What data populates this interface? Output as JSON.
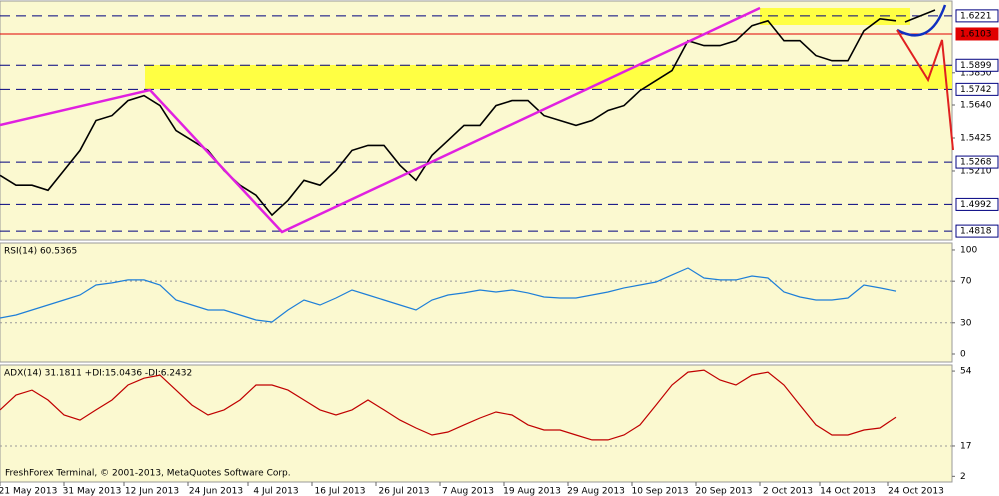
{
  "footer": "FreshForex Terminal, © 2001-2013, MetaQuotes Software Corp.",
  "chart_data": [
    {
      "type": "line",
      "color": "#000000",
      "x": [
        0,
        2,
        4,
        6,
        8,
        10,
        12,
        14,
        16,
        18,
        20,
        22,
        24,
        26,
        28,
        30,
        32,
        34,
        36,
        38,
        40,
        42,
        44,
        46,
        48,
        50,
        52,
        54,
        56,
        58,
        60,
        62,
        64,
        66,
        68,
        70,
        72,
        74,
        76,
        78,
        80,
        82,
        84,
        86,
        88,
        90,
        92,
        94,
        96,
        98,
        100,
        102,
        104,
        106,
        108,
        110,
        112
      ],
      "values": [
        1.5182,
        1.5117,
        1.5117,
        1.5084,
        1.5214,
        1.5344,
        1.5539,
        1.5571,
        1.5669,
        1.5701,
        1.5636,
        1.5474,
        1.5409,
        1.5344,
        1.5214,
        1.5117,
        1.5052,
        1.4922,
        1.5019,
        1.5149,
        1.5117,
        1.5214,
        1.5344,
        1.5377,
        1.5377,
        1.5247,
        1.5149,
        1.5312,
        1.5409,
        1.5507,
        1.5507,
        1.5636,
        1.5669,
        1.5669,
        1.5571,
        1.5539,
        1.5507,
        1.5539,
        1.5604,
        1.5636,
        1.5734,
        1.5799,
        1.5864,
        1.6059,
        1.6027,
        1.6027,
        1.6059,
        1.6157,
        1.6189,
        1.6059,
        1.6059,
        1.5962,
        1.5929,
        1.5929,
        1.6124,
        1.6202,
        1.6189
      ],
      "xlim": [
        0,
        119
      ],
      "xticks": [
        {
          "value": 3.5,
          "label": "21 May 2013"
        },
        {
          "value": 11.5,
          "label": "31 May 2013"
        },
        {
          "value": 19,
          "label": "12 Jun 2013"
        },
        {
          "value": 27,
          "label": "24 Jun 2013"
        },
        {
          "value": 34.5,
          "label": "4 Jul 2013"
        },
        {
          "value": 42.5,
          "label": "16 Jul 2013"
        },
        {
          "value": 50.5,
          "label": "26 Jul 2013"
        },
        {
          "value": 58.5,
          "label": "7 Aug 2013"
        },
        {
          "value": 66.5,
          "label": "19 Aug 2013"
        },
        {
          "value": 74.5,
          "label": "29 Aug 2013"
        },
        {
          "value": 82.5,
          "label": "10 Sep 2013"
        },
        {
          "value": 90.5,
          "label": "20 Sep 2013"
        },
        {
          "value": 98.5,
          "label": "2 Oct 2013"
        },
        {
          "value": 106,
          "label": "14 Oct 2013"
        },
        {
          "value": 114.5,
          "label": "24 Oct 2013"
        }
      ],
      "ylim": [
        1.476,
        1.6318
      ],
      "yticks": [
        {
          "value": 1.585,
          "label": "1.5850"
        },
        {
          "value": 1.564,
          "label": "1.5640"
        },
        {
          "value": 1.5425,
          "label": "1.5425"
        },
        {
          "value": 1.521,
          "label": "1.5210"
        }
      ],
      "levels": [
        {
          "value": 1.6221,
          "color": "#000080"
        },
        {
          "value": 1.6103,
          "color": "#e00000"
        },
        {
          "value": 1.5899,
          "color": "#000080"
        },
        {
          "value": 1.5742,
          "color": "#000080"
        },
        {
          "value": 1.5268,
          "color": "#000080"
        },
        {
          "value": 1.4992,
          "color": "#000080"
        },
        {
          "value": 1.4818,
          "color": "#000080"
        }
      ]
    },
    {
      "type": "line",
      "title": "RSI(14) 60.5365",
      "color": "#1e7fd8",
      "x": [
        0,
        2,
        4,
        6,
        8,
        10,
        12,
        14,
        16,
        18,
        20,
        22,
        24,
        26,
        28,
        30,
        32,
        34,
        36,
        38,
        40,
        42,
        44,
        46,
        48,
        50,
        52,
        54,
        56,
        58,
        60,
        62,
        64,
        66,
        68,
        70,
        72,
        74,
        76,
        78,
        80,
        82,
        84,
        86,
        88,
        90,
        92,
        94,
        96,
        98,
        100,
        102,
        104,
        106,
        108,
        110,
        112
      ],
      "values": [
        34.6,
        37.5,
        42.3,
        47.1,
        51.9,
        56.7,
        66.3,
        68.3,
        71.2,
        71.2,
        66.3,
        51.9,
        47.1,
        42.3,
        42.3,
        37.5,
        32.7,
        30.8,
        42.3,
        51.9,
        47.1,
        53.8,
        61.5,
        56.7,
        51.9,
        47.1,
        42.3,
        51.9,
        56.7,
        58.7,
        61.5,
        59.6,
        61.5,
        58.7,
        54.8,
        53.8,
        53.8,
        56.7,
        59.6,
        63.5,
        66.3,
        69.2,
        76.0,
        82.7,
        73.1,
        71.2,
        71.2,
        75.0,
        73.1,
        59.6,
        54.8,
        51.9,
        51.9,
        53.8,
        66.3,
        63.5,
        60.5
      ],
      "xlim": [
        0,
        119
      ],
      "ylim": [
        -7.7,
        106.7
      ],
      "yticks": [
        100,
        70,
        30,
        0
      ]
    },
    {
      "type": "line",
      "title": "ADX(14) 31.1811 +DI:15.0436 -DI:6.2432",
      "color": "#c00000",
      "x": [
        0,
        2,
        4,
        6,
        8,
        10,
        12,
        14,
        16,
        18,
        20,
        22,
        24,
        26,
        28,
        30,
        32,
        34,
        36,
        38,
        40,
        42,
        44,
        46,
        48,
        50,
        52,
        54,
        56,
        58,
        60,
        62,
        64,
        66,
        68,
        70,
        72,
        74,
        76,
        78,
        80,
        82,
        84,
        86,
        88,
        90,
        92,
        94,
        96,
        98,
        100,
        102,
        104,
        106,
        108,
        110,
        112
      ],
      "values": [
        34.8,
        42.2,
        44.6,
        39.7,
        32.3,
        29.8,
        34.8,
        39.7,
        47.1,
        50.5,
        52.0,
        44.6,
        37.2,
        32.3,
        34.8,
        39.7,
        47.1,
        47.1,
        44.6,
        39.7,
        34.8,
        32.3,
        34.8,
        39.7,
        34.8,
        29.8,
        25.9,
        22.4,
        23.9,
        27.4,
        30.8,
        33.8,
        32.3,
        27.4,
        24.9,
        24.9,
        22.4,
        20.0,
        20.0,
        22.4,
        27.4,
        37.2,
        47.1,
        53.5,
        54.5,
        49.6,
        47.1,
        52.0,
        53.5,
        47.1,
        37.2,
        27.4,
        22.4,
        22.4,
        24.9,
        25.9,
        31.2
      ],
      "xlim": [
        0,
        119
      ],
      "ylim": [
        -0.8,
        57
      ],
      "yticks": [
        54,
        17,
        2
      ]
    }
  ]
}
